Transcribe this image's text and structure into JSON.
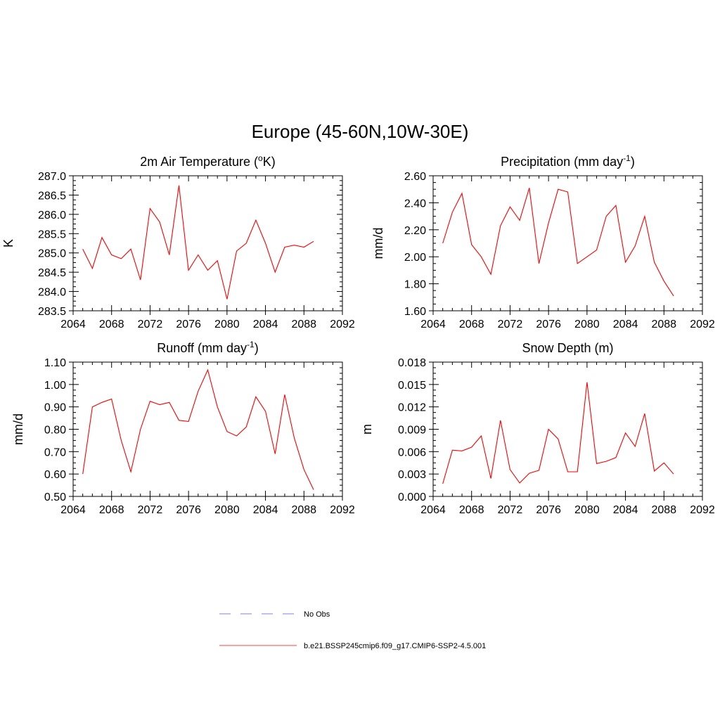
{
  "figure": {
    "title": "Europe (45-60N,10W-30E)"
  },
  "legend": {
    "entries": [
      {
        "label": "No Obs",
        "color": "#9999ee",
        "style": "dashed"
      },
      {
        "label": "b.e21.BSSP245cmip6.f09_g17.CMIP6-SSP2-4.5.001",
        "color": "#ff6666",
        "style": "solid"
      }
    ]
  },
  "chart_data": [
    {
      "type": "line",
      "title": "2m Air Temperature (",
      "title_sup": "o",
      "title_tail": "K)",
      "ylabel": "K",
      "xlim": [
        2064,
        2092
      ],
      "ylim": [
        283.5,
        287.0
      ],
      "x_ticks": [
        "2064",
        "2068",
        "2072",
        "2076",
        "2080",
        "2084",
        "2088",
        "2092"
      ],
      "y_ticks": [
        "283.5",
        "284.0",
        "284.5",
        "285.0",
        "285.5",
        "286.0",
        "286.5",
        "287.0"
      ],
      "series_color": "#ff0000",
      "x": [
        2065,
        2066,
        2067,
        2068,
        2069,
        2070,
        2071,
        2072,
        2073,
        2074,
        2075,
        2076,
        2077,
        2078,
        2079,
        2080,
        2081,
        2082,
        2083,
        2084,
        2085,
        2086,
        2087,
        2088,
        2089
      ],
      "y": [
        285.1,
        284.6,
        285.4,
        284.95,
        284.85,
        285.1,
        284.3,
        286.15,
        285.8,
        284.95,
        286.75,
        284.55,
        284.95,
        284.55,
        284.8,
        283.8,
        285.05,
        285.25,
        285.85,
        285.25,
        284.5,
        285.15,
        285.2,
        285.15,
        285.3
      ]
    },
    {
      "type": "line",
      "title": "Precipitation (mm day",
      "title_sup": "-1",
      "title_tail": ")",
      "ylabel": "mm/d",
      "xlim": [
        2064,
        2092
      ],
      "ylim": [
        1.6,
        2.6
      ],
      "x_ticks": [
        "2064",
        "2068",
        "2072",
        "2076",
        "2080",
        "2084",
        "2088",
        "2092"
      ],
      "y_ticks": [
        "1.60",
        "1.80",
        "2.00",
        "2.20",
        "2.40",
        "2.60"
      ],
      "series_color": "#ff0000",
      "x": [
        2065,
        2066,
        2067,
        2068,
        2069,
        2070,
        2071,
        2072,
        2073,
        2074,
        2075,
        2076,
        2077,
        2078,
        2079,
        2080,
        2081,
        2082,
        2083,
        2084,
        2085,
        2086,
        2087,
        2088,
        2089
      ],
      "y": [
        2.1,
        2.33,
        2.47,
        2.09,
        2.0,
        1.87,
        2.23,
        2.37,
        2.27,
        2.51,
        1.95,
        2.25,
        2.5,
        2.48,
        1.95,
        2.0,
        2.05,
        2.3,
        2.38,
        1.96,
        2.08,
        2.3,
        1.96,
        1.82,
        1.71
      ]
    },
    {
      "type": "line",
      "title": "Runoff (mm day",
      "title_sup": "-1",
      "title_tail": ")",
      "ylabel": "mm/d",
      "xlim": [
        2064,
        2092
      ],
      "ylim": [
        0.5,
        1.1
      ],
      "x_ticks": [
        "2064",
        "2068",
        "2072",
        "2076",
        "2080",
        "2084",
        "2088",
        "2092"
      ],
      "y_ticks": [
        "0.50",
        "0.60",
        "0.70",
        "0.80",
        "0.90",
        "1.00",
        "1.10"
      ],
      "series_color": "#ff0000",
      "x": [
        2065,
        2066,
        2067,
        2068,
        2069,
        2070,
        2071,
        2072,
        2073,
        2074,
        2075,
        2076,
        2077,
        2078,
        2079,
        2080,
        2081,
        2082,
        2083,
        2084,
        2085,
        2086,
        2087,
        2088,
        2089
      ],
      "y": [
        0.6,
        0.9,
        0.92,
        0.935,
        0.75,
        0.61,
        0.8,
        0.925,
        0.91,
        0.92,
        0.84,
        0.835,
        0.97,
        1.065,
        0.9,
        0.79,
        0.77,
        0.81,
        0.945,
        0.88,
        0.69,
        0.955,
        0.76,
        0.62,
        0.53
      ]
    },
    {
      "type": "line",
      "title": "Snow Depth (m)",
      "title_sup": "",
      "title_tail": "",
      "ylabel": "m",
      "xlim": [
        2064,
        2092
      ],
      "ylim": [
        0.0,
        0.018
      ],
      "x_ticks": [
        "2064",
        "2068",
        "2072",
        "2076",
        "2080",
        "2084",
        "2088",
        "2092"
      ],
      "y_ticks": [
        "0.000",
        "0.003",
        "0.006",
        "0.009",
        "0.012",
        "0.015",
        "0.018"
      ],
      "series_color": "#ff0000",
      "x": [
        2065,
        2066,
        2067,
        2068,
        2069,
        2070,
        2071,
        2072,
        2073,
        2074,
        2075,
        2076,
        2077,
        2078,
        2079,
        2080,
        2081,
        2082,
        2083,
        2084,
        2085,
        2086,
        2087,
        2088,
        2089
      ],
      "y": [
        0.0017,
        0.0062,
        0.0061,
        0.0066,
        0.0081,
        0.0024,
        0.0102,
        0.0036,
        0.0018,
        0.0031,
        0.0035,
        0.009,
        0.0077,
        0.0033,
        0.0033,
        0.0153,
        0.0044,
        0.0047,
        0.0052,
        0.0085,
        0.0067,
        0.0111,
        0.0034,
        0.0045,
        0.003
      ]
    }
  ]
}
